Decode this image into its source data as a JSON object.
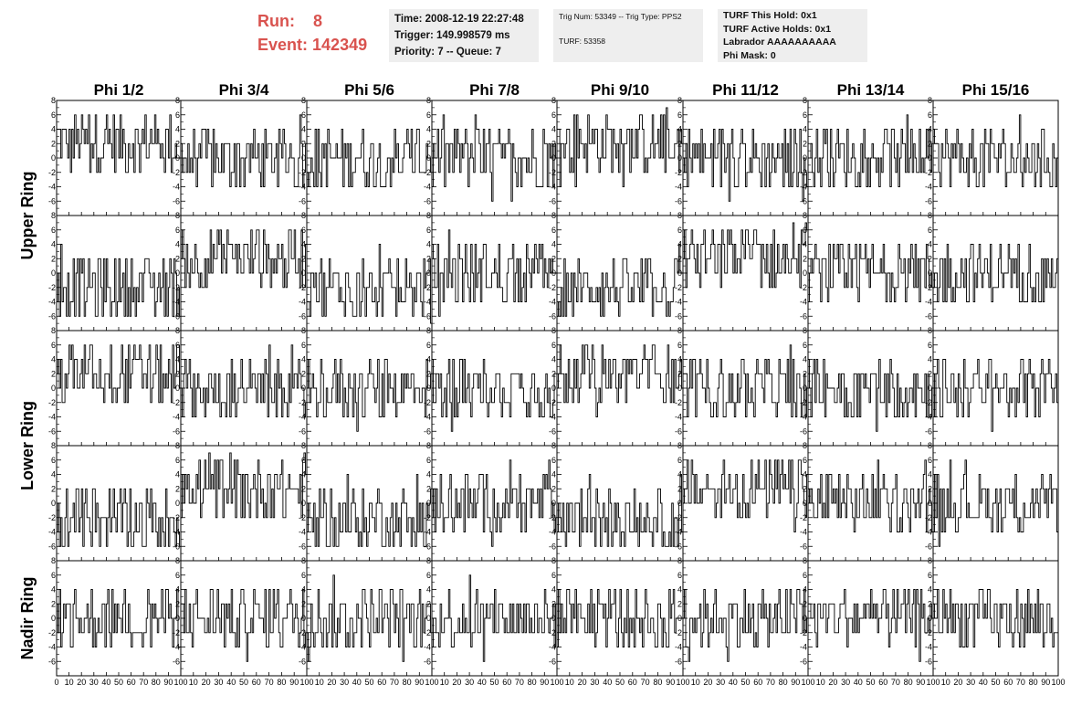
{
  "header": {
    "run_label": "Run:",
    "run_value": "8",
    "event_label": "Event:",
    "event_value": "142349"
  },
  "info_boxes": {
    "timing": {
      "time": "Time: 2008-12-19 22:27:48",
      "trigger": "Trigger: 149.998579 ms",
      "priority": "Priority: 7 -- Queue: 7"
    },
    "trig": {
      "trig_line": "Trig Num: 53349 -- Trig Type: PPS2",
      "turf_line": "TURF: 53358"
    },
    "turf": {
      "this_hold": "TURF This Hold: 0x1",
      "active_holds": "TURF Active Holds: 0x1",
      "labrador": "Labrador AAAAAAAAAA",
      "phi_mask": "Phi Mask: 0"
    }
  },
  "colors": {
    "header_red": "#d9534f",
    "box_gray": "#eeeeee",
    "trace": "#000000"
  },
  "chart_data": {
    "type": "line",
    "columns": [
      "Phi 1/2",
      "Phi 3/4",
      "Phi 5/6",
      "Phi 7/8",
      "Phi 9/10",
      "Phi 11/12",
      "Phi 13/14",
      "Phi 15/16"
    ],
    "rings": [
      "Upper Ring",
      "Lower Ring",
      "Nadir Ring"
    ],
    "rows": 5,
    "x_range": [
      0,
      100
    ],
    "y_range": [
      -8,
      8
    ],
    "x_ticks": [
      0,
      10,
      20,
      30,
      40,
      50,
      60,
      70,
      80,
      90,
      100
    ],
    "x_tick_labels_first": [
      "0",
      "10",
      "20",
      "30",
      "40",
      "50",
      "60",
      "70",
      "80",
      "90",
      "100"
    ],
    "x_tick_labels_other": [
      "10",
      "20",
      "30",
      "40",
      "50",
      "60",
      "70",
      "80",
      "90",
      "100"
    ],
    "y_ticks": [
      -6,
      -4,
      -2,
      0,
      2,
      4,
      6,
      8
    ],
    "y_tick_labels": [
      "-6",
      "-4",
      "-2",
      "0",
      "2",
      "4",
      "6",
      "8"
    ],
    "baseline_offsets": [
      [
        2,
        0,
        0,
        0,
        2,
        0,
        0,
        0
      ],
      [
        -2,
        2,
        -2,
        0,
        -2,
        2,
        0,
        0
      ],
      [
        2,
        0,
        0,
        0,
        2,
        0,
        0,
        0
      ],
      [
        -2,
        2,
        -2,
        0,
        -2,
        2,
        0,
        0
      ],
      [
        0,
        0,
        0,
        0,
        0,
        0,
        0,
        0
      ]
    ],
    "samples_per_panel": 90,
    "amplitude": 4,
    "grid": false
  }
}
